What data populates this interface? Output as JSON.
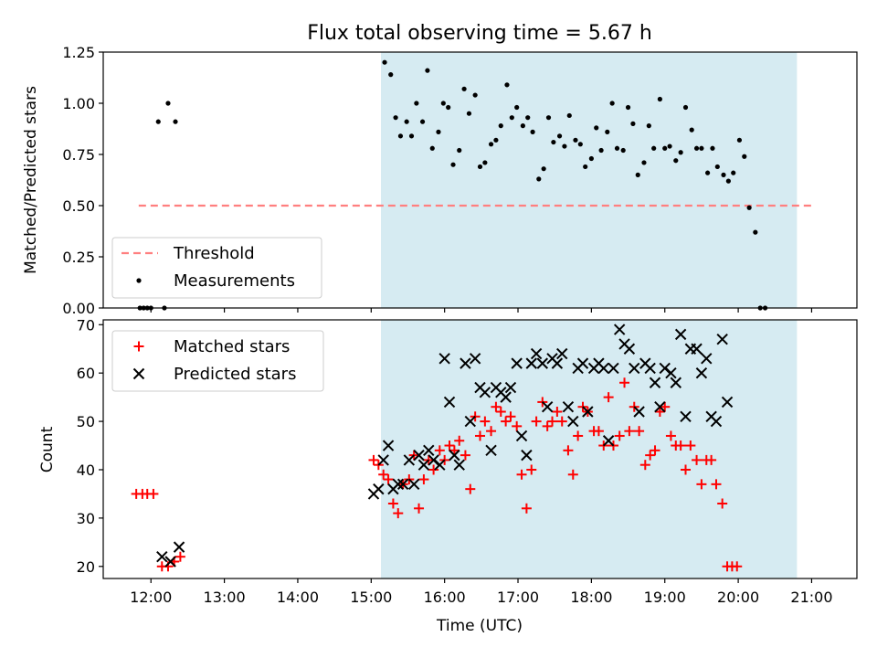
{
  "chart_data": [
    {
      "type": "scatter",
      "panel": "top",
      "title": "Flux total observing time = 5.67 h",
      "xlabel": "",
      "ylabel": "Matched/Predicted stars",
      "xlim": [
        "11:21",
        "21:37"
      ],
      "ylim": [
        0,
        1.25
      ],
      "yticks": [
        "0.00",
        "0.25",
        "0.50",
        "0.75",
        "1.00",
        "1.25"
      ],
      "shaded_span": [
        "15:08",
        "20:48"
      ],
      "shaded_color": "#add8e6",
      "legend": {
        "position": "lower-left"
      },
      "threshold": {
        "name": "Threshold",
        "value": 0.5,
        "x_from": "11:50",
        "x_to": "21:03",
        "color": "#ff7f7f"
      },
      "series": [
        {
          "name": "Measurements",
          "color": "#000000",
          "points": [
            [
              "11:51",
              0
            ],
            [
              "11:54",
              0
            ],
            [
              "11:57",
              0
            ],
            [
              "12:00",
              0
            ],
            [
              "12:06",
              0.91
            ],
            [
              "12:11",
              0
            ],
            [
              "12:14",
              1.0
            ],
            [
              "12:20",
              0.91
            ],
            [
              "15:11",
              1.2
            ],
            [
              "15:16",
              1.14
            ],
            [
              "15:20",
              0.93
            ],
            [
              "15:24",
              0.84
            ],
            [
              "15:29",
              0.91
            ],
            [
              "15:33",
              0.84
            ],
            [
              "15:37",
              1.0
            ],
            [
              "15:42",
              0.91
            ],
            [
              "15:46",
              1.16
            ],
            [
              "15:50",
              0.78
            ],
            [
              "15:55",
              0.86
            ],
            [
              "15:59",
              1.0
            ],
            [
              "16:03",
              0.98
            ],
            [
              "16:07",
              0.7
            ],
            [
              "16:12",
              0.77
            ],
            [
              "16:16",
              1.07
            ],
            [
              "16:20",
              0.95
            ],
            [
              "16:25",
              1.04
            ],
            [
              "16:29",
              0.69
            ],
            [
              "16:33",
              0.71
            ],
            [
              "16:38",
              0.8
            ],
            [
              "16:42",
              0.82
            ],
            [
              "16:46",
              0.89
            ],
            [
              "16:51",
              1.09
            ],
            [
              "16:55",
              0.93
            ],
            [
              "16:59",
              0.98
            ],
            [
              "17:04",
              0.89
            ],
            [
              "17:08",
              0.93
            ],
            [
              "17:12",
              0.86
            ],
            [
              "17:17",
              0.63
            ],
            [
              "17:21",
              0.68
            ],
            [
              "17:25",
              0.93
            ],
            [
              "17:29",
              0.81
            ],
            [
              "17:34",
              0.84
            ],
            [
              "17:38",
              0.79
            ],
            [
              "17:42",
              0.94
            ],
            [
              "17:47",
              0.82
            ],
            [
              "17:51",
              0.8
            ],
            [
              "17:55",
              0.69
            ],
            [
              "18:00",
              0.73
            ],
            [
              "18:04",
              0.88
            ],
            [
              "18:08",
              0.77
            ],
            [
              "18:13",
              0.86
            ],
            [
              "18:17",
              1.0
            ],
            [
              "18:21",
              0.78
            ],
            [
              "18:26",
              0.77
            ],
            [
              "18:30",
              0.98
            ],
            [
              "18:34",
              0.9
            ],
            [
              "18:38",
              0.65
            ],
            [
              "18:43",
              0.71
            ],
            [
              "18:47",
              0.89
            ],
            [
              "18:51",
              0.78
            ],
            [
              "18:56",
              1.02
            ],
            [
              "19:00",
              0.78
            ],
            [
              "19:04",
              0.79
            ],
            [
              "19:09",
              0.72
            ],
            [
              "19:13",
              0.76
            ],
            [
              "19:17",
              0.98
            ],
            [
              "19:22",
              0.87
            ],
            [
              "19:26",
              0.78
            ],
            [
              "19:30",
              0.78
            ],
            [
              "19:35",
              0.66
            ],
            [
              "19:39",
              0.78
            ],
            [
              "19:43",
              0.69
            ],
            [
              "19:48",
              0.65
            ],
            [
              "19:52",
              0.62
            ],
            [
              "19:56",
              0.66
            ],
            [
              "20:01",
              0.82
            ],
            [
              "20:05",
              0.74
            ],
            [
              "20:09",
              0.49
            ],
            [
              "20:14",
              0.37
            ],
            [
              "20:18",
              0
            ],
            [
              "20:22",
              0
            ]
          ]
        }
      ]
    },
    {
      "type": "scatter",
      "panel": "bottom",
      "title": "",
      "xlabel": "Time (UTC)",
      "ylabel": "Count",
      "xlim": [
        "11:21",
        "21:37"
      ],
      "ylim": [
        17.5,
        71
      ],
      "xticks": [
        "12:00",
        "13:00",
        "14:00",
        "15:00",
        "16:00",
        "17:00",
        "18:00",
        "19:00",
        "20:00",
        "21:00"
      ],
      "yticks": [
        "20",
        "30",
        "40",
        "50",
        "60",
        "70"
      ],
      "shaded_span": [
        "15:08",
        "20:48"
      ],
      "shaded_color": "#add8e6",
      "legend": {
        "position": "top-left"
      },
      "series": [
        {
          "name": "Matched stars",
          "marker": "plus",
          "color": "#ff0000",
          "points": [
            [
              "11:48",
              35
            ],
            [
              "11:53",
              35
            ],
            [
              "11:57",
              35
            ],
            [
              "12:02",
              35
            ],
            [
              "12:09",
              20
            ],
            [
              "12:14",
              20
            ],
            [
              "12:19",
              21
            ],
            [
              "12:24",
              22
            ],
            [
              "15:02",
              42
            ],
            [
              "15:06",
              41
            ],
            [
              "15:10",
              39
            ],
            [
              "15:14",
              38
            ],
            [
              "15:18",
              33
            ],
            [
              "15:22",
              31
            ],
            [
              "15:26",
              37
            ],
            [
              "15:31",
              38
            ],
            [
              "15:35",
              43
            ],
            [
              "15:39",
              32
            ],
            [
              "15:43",
              38
            ],
            [
              "15:47",
              42
            ],
            [
              "15:51",
              40
            ],
            [
              "15:56",
              44
            ],
            [
              "16:00",
              42
            ],
            [
              "16:04",
              45
            ],
            [
              "16:08",
              44
            ],
            [
              "16:12",
              46
            ],
            [
              "16:17",
              43
            ],
            [
              "16:21",
              36
            ],
            [
              "16:25",
              51
            ],
            [
              "16:29",
              47
            ],
            [
              "16:33",
              50
            ],
            [
              "16:38",
              48
            ],
            [
              "16:42",
              53
            ],
            [
              "16:46",
              52
            ],
            [
              "16:50",
              50
            ],
            [
              "16:54",
              51
            ],
            [
              "16:59",
              49
            ],
            [
              "17:03",
              39
            ],
            [
              "17:07",
              32
            ],
            [
              "17:11",
              40
            ],
            [
              "17:15",
              50
            ],
            [
              "17:20",
              54
            ],
            [
              "17:24",
              49
            ],
            [
              "17:28",
              50
            ],
            [
              "17:32",
              52
            ],
            [
              "17:36",
              50
            ],
            [
              "17:41",
              44
            ],
            [
              "17:45",
              39
            ],
            [
              "17:49",
              47
            ],
            [
              "17:53",
              53
            ],
            [
              "17:57",
              52
            ],
            [
              "18:02",
              48
            ],
            [
              "18:06",
              48
            ],
            [
              "18:10",
              45
            ],
            [
              "18:14",
              55
            ],
            [
              "18:18",
              45
            ],
            [
              "18:23",
              47
            ],
            [
              "18:27",
              58
            ],
            [
              "18:31",
              48
            ],
            [
              "18:35",
              53
            ],
            [
              "18:39",
              48
            ],
            [
              "18:44",
              41
            ],
            [
              "18:48",
              43
            ],
            [
              "18:52",
              44
            ],
            [
              "18:56",
              52
            ],
            [
              "19:00",
              53
            ],
            [
              "19:05",
              47
            ],
            [
              "19:09",
              45
            ],
            [
              "19:13",
              45
            ],
            [
              "19:17",
              40
            ],
            [
              "19:21",
              45
            ],
            [
              "19:26",
              42
            ],
            [
              "19:30",
              37
            ],
            [
              "19:34",
              42
            ],
            [
              "19:38",
              42
            ],
            [
              "19:42",
              37
            ],
            [
              "19:47",
              33
            ],
            [
              "19:51",
              20
            ],
            [
              "19:55",
              20
            ],
            [
              "19:59",
              20
            ]
          ]
        },
        {
          "name": "Predicted stars",
          "marker": "x",
          "color": "#000000",
          "points": [
            [
              "12:09",
              22
            ],
            [
              "12:16",
              21
            ],
            [
              "12:23",
              24
            ],
            [
              "15:02",
              35
            ],
            [
              "15:06",
              36
            ],
            [
              "15:10",
              42
            ],
            [
              "15:14",
              45
            ],
            [
              "15:18",
              36
            ],
            [
              "15:22",
              37
            ],
            [
              "15:26",
              37
            ],
            [
              "15:31",
              42
            ],
            [
              "15:35",
              37
            ],
            [
              "15:39",
              43
            ],
            [
              "15:43",
              41
            ],
            [
              "15:47",
              44
            ],
            [
              "15:51",
              42
            ],
            [
              "15:56",
              41
            ],
            [
              "16:00",
              63
            ],
            [
              "16:04",
              54
            ],
            [
              "16:08",
              43
            ],
            [
              "16:12",
              41
            ],
            [
              "16:17",
              62
            ],
            [
              "16:21",
              50
            ],
            [
              "16:25",
              63
            ],
            [
              "16:29",
              57
            ],
            [
              "16:33",
              56
            ],
            [
              "16:38",
              44
            ],
            [
              "16:42",
              57
            ],
            [
              "16:46",
              56
            ],
            [
              "16:50",
              55
            ],
            [
              "16:54",
              57
            ],
            [
              "16:59",
              62
            ],
            [
              "17:03",
              47
            ],
            [
              "17:07",
              43
            ],
            [
              "17:11",
              62
            ],
            [
              "17:15",
              64
            ],
            [
              "17:20",
              62
            ],
            [
              "17:24",
              53
            ],
            [
              "17:28",
              63
            ],
            [
              "17:32",
              62
            ],
            [
              "17:36",
              64
            ],
            [
              "17:41",
              53
            ],
            [
              "17:45",
              50
            ],
            [
              "17:49",
              61
            ],
            [
              "17:53",
              62
            ],
            [
              "17:57",
              52
            ],
            [
              "18:02",
              61
            ],
            [
              "18:06",
              62
            ],
            [
              "18:10",
              61
            ],
            [
              "18:14",
              46
            ],
            [
              "18:18",
              61
            ],
            [
              "18:23",
              69
            ],
            [
              "18:27",
              66
            ],
            [
              "18:31",
              65
            ],
            [
              "18:35",
              61
            ],
            [
              "18:39",
              52
            ],
            [
              "18:44",
              62
            ],
            [
              "18:48",
              61
            ],
            [
              "18:52",
              58
            ],
            [
              "18:56",
              53
            ],
            [
              "19:00",
              61
            ],
            [
              "19:05",
              60
            ],
            [
              "19:09",
              58
            ],
            [
              "19:13",
              68
            ],
            [
              "19:17",
              51
            ],
            [
              "19:21",
              65
            ],
            [
              "19:26",
              65
            ],
            [
              "19:30",
              60
            ],
            [
              "19:34",
              63
            ],
            [
              "19:38",
              51
            ],
            [
              "19:42",
              50
            ],
            [
              "19:47",
              67
            ],
            [
              "19:51",
              54
            ]
          ]
        }
      ]
    }
  ]
}
